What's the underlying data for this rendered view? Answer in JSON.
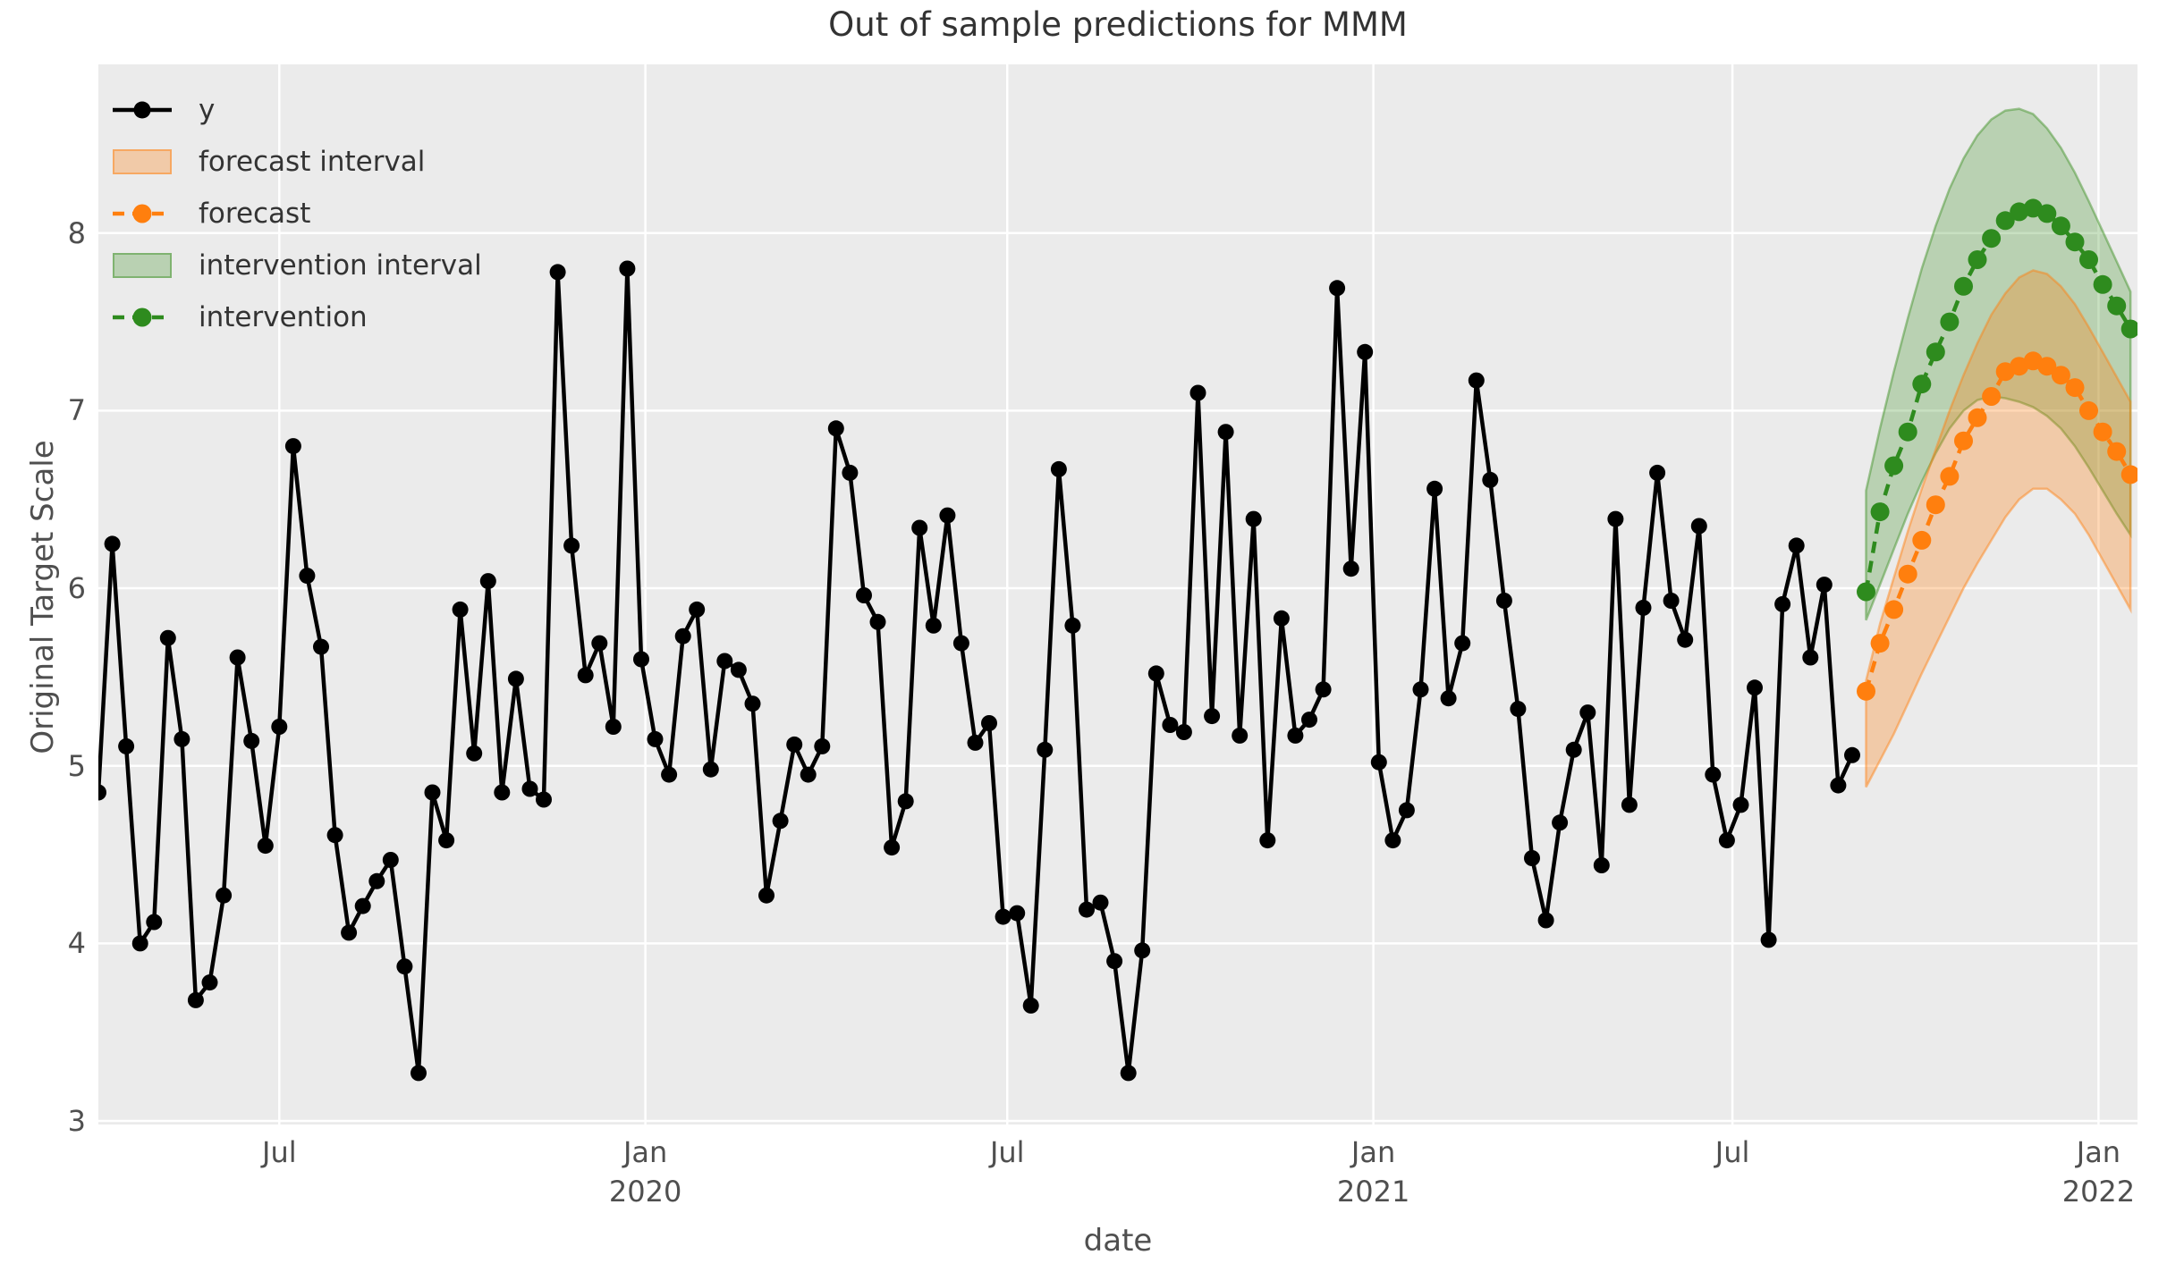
{
  "chart_data": {
    "type": "line",
    "title": "Out of sample predictions for MMM",
    "xlabel": "date",
    "ylabel": "Original Target Scale",
    "x_axis": {
      "unit": "weeks",
      "start_date": "2019-04-01",
      "frequency": "weekly",
      "domain_weeks": [
        0,
        146.5
      ],
      "ticks": [
        {
          "week": 13.0,
          "label": "Jul",
          "year": ""
        },
        {
          "week": 39.3,
          "label": "Jan",
          "year": "2020"
        },
        {
          "week": 65.3,
          "label": "Jul",
          "year": ""
        },
        {
          "week": 91.6,
          "label": "Jan",
          "year": "2021"
        },
        {
          "week": 117.4,
          "label": "Jul",
          "year": ""
        },
        {
          "week": 143.7,
          "label": "Jan",
          "year": "2022"
        }
      ]
    },
    "y_axis": {
      "domain": [
        2.98,
        8.95
      ],
      "ticks": [
        3,
        4,
        5,
        6,
        7,
        8
      ]
    },
    "grid": "on",
    "legend_position": "upper-left",
    "legend": [
      {
        "label": "y",
        "swatch": "line-dot-solid",
        "color_key": "observed"
      },
      {
        "label": "forecast interval",
        "swatch": "patch",
        "color_key": "forecast_band"
      },
      {
        "label": "forecast",
        "swatch": "line-dot-dashed",
        "color_key": "forecast"
      },
      {
        "label": "intervention interval",
        "swatch": "patch",
        "color_key": "intervention_band"
      },
      {
        "label": "intervention",
        "swatch": "line-dot-dashed",
        "color_key": "intervention"
      }
    ],
    "colors": {
      "observed": "#000000",
      "forecast": "#ff7f0e",
      "forecast_band_fill": "rgba(255,127,14,0.30)",
      "forecast_band_edge": "rgba(255,127,14,0.45)",
      "intervention": "#2e8b1e",
      "intervention_band_fill": "rgba(58,142,32,0.28)",
      "intervention_band_edge": "rgba(58,142,32,0.45)",
      "plot_bg": "#ebebeb",
      "grid": "#ffffff",
      "tick_text": "#4f4f4f",
      "title_text": "#333333"
    },
    "series": [
      {
        "name": "y",
        "style": "solid-dot",
        "start_week": 0,
        "values": [
          4.85,
          6.25,
          5.11,
          4.0,
          4.12,
          5.72,
          5.15,
          3.68,
          3.78,
          4.27,
          5.61,
          5.14,
          4.55,
          5.22,
          6.8,
          6.07,
          5.67,
          4.61,
          4.06,
          4.21,
          4.35,
          4.47,
          3.87,
          3.27,
          4.85,
          4.58,
          5.88,
          5.07,
          6.04,
          4.85,
          5.49,
          4.87,
          4.81,
          7.78,
          6.24,
          5.51,
          5.69,
          5.22,
          7.8,
          5.6,
          5.15,
          4.95,
          5.73,
          5.88,
          4.98,
          5.59,
          5.54,
          5.35,
          4.27,
          4.69,
          5.12,
          4.95,
          5.11,
          6.9,
          6.65,
          5.96,
          5.81,
          4.54,
          4.8,
          6.34,
          5.79,
          6.41,
          5.69,
          5.13,
          5.24,
          4.15,
          4.17,
          3.65,
          5.09,
          6.67,
          5.79,
          4.19,
          4.23,
          3.9,
          3.27,
          3.96,
          5.52,
          5.23,
          5.19,
          7.1,
          5.28,
          6.88,
          5.17,
          6.39,
          4.58,
          5.83,
          5.17,
          5.26,
          5.43,
          7.69,
          6.11,
          7.33,
          5.02,
          4.58,
          4.75,
          5.43,
          6.56,
          5.38,
          5.69,
          7.17,
          6.61,
          5.93,
          5.32,
          4.48,
          4.13,
          4.68,
          5.09,
          5.3,
          4.44,
          6.39,
          4.78,
          5.89,
          6.65,
          5.93,
          5.71,
          6.35,
          4.95,
          4.58,
          4.78,
          5.44,
          4.02,
          5.91,
          6.24,
          5.61,
          6.02,
          4.89,
          5.06
        ]
      },
      {
        "name": "forecast",
        "style": "dashed-dot",
        "start_week": 127,
        "values": [
          5.42,
          5.69,
          5.88,
          6.08,
          6.27,
          6.47,
          6.63,
          6.83,
          6.96,
          7.08,
          7.22,
          7.25,
          7.28,
          7.25,
          7.2,
          7.13,
          7.0,
          6.88,
          6.77,
          6.64
        ],
        "lower": [
          4.88,
          5.03,
          5.18,
          5.35,
          5.52,
          5.68,
          5.84,
          6.0,
          6.14,
          6.27,
          6.4,
          6.5,
          6.56,
          6.56,
          6.5,
          6.42,
          6.3,
          6.16,
          6.02,
          5.88
        ],
        "upper": [
          5.48,
          5.8,
          6.06,
          6.32,
          6.56,
          6.78,
          7.0,
          7.2,
          7.38,
          7.54,
          7.66,
          7.75,
          7.79,
          7.77,
          7.7,
          7.6,
          7.47,
          7.33,
          7.19,
          7.05
        ]
      },
      {
        "name": "intervention",
        "style": "dashed-dot",
        "start_week": 127,
        "values": [
          5.98,
          6.43,
          6.69,
          6.88,
          7.15,
          7.33,
          7.5,
          7.7,
          7.85,
          7.97,
          8.07,
          8.12,
          8.14,
          8.11,
          8.04,
          7.95,
          7.85,
          7.71,
          7.59,
          7.46
        ],
        "lower": [
          5.82,
          6.02,
          6.22,
          6.42,
          6.6,
          6.76,
          6.9,
          7.0,
          7.06,
          7.08,
          7.07,
          7.05,
          7.02,
          6.97,
          6.9,
          6.8,
          6.68,
          6.55,
          6.42,
          6.3
        ],
        "upper": [
          6.55,
          6.9,
          7.22,
          7.52,
          7.8,
          8.04,
          8.25,
          8.42,
          8.55,
          8.64,
          8.69,
          8.7,
          8.67,
          8.59,
          8.48,
          8.34,
          8.18,
          8.01,
          7.84,
          7.67
        ]
      }
    ]
  }
}
